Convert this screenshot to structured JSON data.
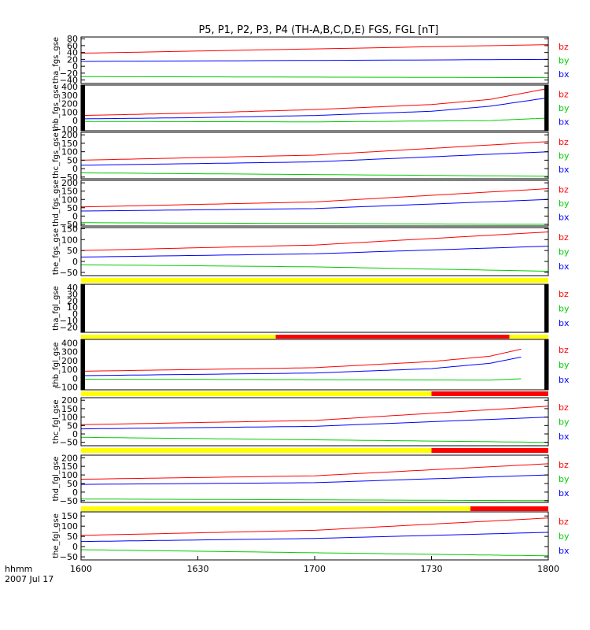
{
  "chart_data": {
    "type": "line",
    "title": "P5, P1, P2, P3, P4 (TH-A,B,C,D,E) FGS, FGL [nT]",
    "x_axis": {
      "range_hhmm": [
        "1600",
        "1800"
      ],
      "tick_labels": [
        "1600",
        "1630",
        "1700",
        "1730",
        "1800"
      ],
      "label_line1": "hhmm",
      "label_line2": "2007 Jul 17"
    },
    "series_colors": {
      "bz": "#ff0000",
      "by": "#00cc00",
      "bx": "#0000ff"
    },
    "legend_labels": [
      "bz",
      "by",
      "bx"
    ],
    "panels": [
      {
        "ylabel": "tha_fgs_gse",
        "ylim": [
          -50,
          85
        ],
        "yticks": [
          "80",
          "60",
          "40",
          "20",
          "0",
          "−20",
          "−40"
        ],
        "tick_values": [
          80,
          60,
          40,
          20,
          0,
          -20,
          -40
        ],
        "end_markers": false,
        "series": [
          {
            "name": "bz",
            "x_min": [
              0,
              120
            ],
            "values": [
              38,
              63
            ]
          },
          {
            "name": "by",
            "x_min": [
              0,
              120
            ],
            "values": [
              -30,
              -33
            ]
          },
          {
            "name": "bx",
            "x_min": [
              0,
              120
            ],
            "values": [
              14,
              20
            ]
          }
        ]
      },
      {
        "ylabel": "thb_fgs_gse",
        "ylim": [
          -120,
          420
        ],
        "yticks": [
          "400",
          "300",
          "200",
          "100",
          "0",
          "−100"
        ],
        "tick_values": [
          400,
          300,
          200,
          100,
          0,
          -100
        ],
        "end_markers": true,
        "series": [
          {
            "name": "bz",
            "x_min": [
              0,
              30,
              60,
              90,
              105,
              120
            ],
            "values": [
              60,
              90,
              130,
              190,
              250,
              380
            ]
          },
          {
            "name": "by",
            "x_min": [
              0,
              60,
              105,
              120
            ],
            "values": [
              -10,
              -15,
              0,
              30
            ]
          },
          {
            "name": "bx",
            "x_min": [
              0,
              30,
              60,
              90,
              105,
              120
            ],
            "values": [
              20,
              35,
              60,
              110,
              170,
              270
            ]
          }
        ]
      },
      {
        "ylabel": "thc_fgs_gse",
        "ylim": [
          -60,
          215
        ],
        "yticks": [
          "200",
          "150",
          "100",
          "50",
          "0",
          "−50"
        ],
        "tick_values": [
          200,
          150,
          100,
          50,
          0,
          -50
        ],
        "end_markers": false,
        "series": [
          {
            "name": "bz",
            "x_min": [
              0,
              60,
              120
            ],
            "values": [
              50,
              80,
              160
            ]
          },
          {
            "name": "by",
            "x_min": [
              0,
              60,
              120
            ],
            "values": [
              -25,
              -35,
              -45
            ]
          },
          {
            "name": "bx",
            "x_min": [
              0,
              60,
              120
            ],
            "values": [
              20,
              40,
              100
            ]
          }
        ]
      },
      {
        "ylabel": "thd_fgs_gse",
        "ylim": [
          -60,
          215
        ],
        "yticks": [
          "200",
          "150",
          "100",
          "50",
          "0",
          "−50"
        ],
        "tick_values": [
          200,
          150,
          100,
          50,
          0,
          -50
        ],
        "end_markers": false,
        "series": [
          {
            "name": "bz",
            "x_min": [
              0,
              60,
              120
            ],
            "values": [
              55,
              85,
              165
            ]
          },
          {
            "name": "by",
            "x_min": [
              0,
              60,
              120
            ],
            "values": [
              -40,
              -45,
              -50
            ]
          },
          {
            "name": "bx",
            "x_min": [
              0,
              60,
              120
            ],
            "values": [
              30,
              45,
              100
            ]
          }
        ]
      },
      {
        "ylabel": "the_fgs_gse",
        "ylim": [
          -65,
          155
        ],
        "yticks": [
          "150",
          "100",
          "50",
          "0",
          "−50"
        ],
        "tick_values": [
          150,
          100,
          50,
          0,
          -50
        ],
        "end_markers": false,
        "series": [
          {
            "name": "bz",
            "x_min": [
              0,
              60,
              120
            ],
            "values": [
              50,
              75,
              135
            ]
          },
          {
            "name": "by",
            "x_min": [
              0,
              60,
              120
            ],
            "values": [
              -15,
              -25,
              -45
            ]
          },
          {
            "name": "bx",
            "x_min": [
              0,
              60,
              120
            ],
            "values": [
              20,
              35,
              70
            ]
          }
        ]
      },
      {
        "ylabel": "tha_fgl_gse",
        "ylim": [
          -28,
          45
        ],
        "yticks": [
          "40",
          "30",
          "20",
          "10",
          "0",
          "−10",
          "−20"
        ],
        "tick_values": [
          40,
          30,
          20,
          10,
          0,
          -10,
          -20
        ],
        "end_markers": true,
        "series": []
      },
      {
        "ylabel": "thb_fgl_gse",
        "ylim": [
          -130,
          440
        ],
        "yticks": [
          "400",
          "300",
          "200",
          "100",
          "0",
          "−100"
        ],
        "tick_values": [
          400,
          300,
          200,
          100,
          0,
          -100
        ],
        "end_markers": true,
        "series": [
          {
            "name": "bz",
            "x_min": [
              0,
              60,
              90,
              105,
              113
            ],
            "values": [
              80,
              120,
              190,
              250,
              330
            ]
          },
          {
            "name": "by",
            "x_min": [
              0,
              60,
              105,
              113
            ],
            "values": [
              -10,
              -15,
              -20,
              -5
            ]
          },
          {
            "name": "bx",
            "x_min": [
              0,
              60,
              90,
              105,
              113
            ],
            "values": [
              30,
              60,
              110,
              170,
              240
            ]
          }
        ]
      },
      {
        "ylabel": "thc_fgl_gse",
        "ylim": [
          -70,
          215
        ],
        "yticks": [
          "200",
          "150",
          "100",
          "50",
          "0",
          "−50"
        ],
        "tick_values": [
          200,
          150,
          100,
          50,
          0,
          -50
        ],
        "end_markers": false,
        "series": [
          {
            "name": "bz",
            "x_min": [
              0,
              60,
              120
            ],
            "values": [
              55,
              80,
              165
            ]
          },
          {
            "name": "by",
            "x_min": [
              0,
              60,
              120
            ],
            "values": [
              -20,
              -35,
              -50
            ]
          },
          {
            "name": "bx",
            "x_min": [
              0,
              60,
              120
            ],
            "values": [
              30,
              45,
              100
            ]
          }
        ]
      },
      {
        "ylabel": "thd_fgl_gse",
        "ylim": [
          -60,
          215
        ],
        "yticks": [
          "200",
          "150",
          "100",
          "50",
          "0",
          "−50"
        ],
        "tick_values": [
          200,
          150,
          100,
          50,
          0,
          -50
        ],
        "end_markers": false,
        "series": [
          {
            "name": "bz",
            "x_min": [
              0,
              60,
              120
            ],
            "values": [
              75,
              95,
              165
            ]
          },
          {
            "name": "by",
            "x_min": [
              0,
              60,
              120
            ],
            "values": [
              -40,
              -45,
              -50
            ]
          },
          {
            "name": "bx",
            "x_min": [
              0,
              60,
              120
            ],
            "values": [
              45,
              55,
              100
            ]
          }
        ]
      },
      {
        "ylabel": "the_fgl_gse",
        "ylim": [
          -65,
          170
        ],
        "yticks": [
          "150",
          "100",
          "50",
          "0",
          "−50"
        ],
        "tick_values": [
          150,
          100,
          50,
          0,
          -50
        ],
        "end_markers": false,
        "series": [
          {
            "name": "bz",
            "x_min": [
              0,
              60,
              120
            ],
            "values": [
              55,
              80,
              140
            ]
          },
          {
            "name": "by",
            "x_min": [
              0,
              60,
              120
            ],
            "values": [
              -15,
              -30,
              -45
            ]
          },
          {
            "name": "bx",
            "x_min": [
              0,
              60,
              120
            ],
            "values": [
              25,
              40,
              70
            ]
          }
        ]
      }
    ],
    "mode_bars": [
      {
        "above_panel": 5,
        "segments": [
          {
            "color": "#ffff00",
            "x_min": [
              0,
              120
            ]
          }
        ]
      },
      {
        "above_panel": 6,
        "segments": [
          {
            "color": "#ffff00",
            "x_min": [
              0,
              50
            ]
          },
          {
            "color": "#ff0000",
            "x_min": [
              50,
              110
            ]
          },
          {
            "color": "#ffff00",
            "x_min": [
              110,
              120
            ]
          }
        ]
      },
      {
        "above_panel": 7,
        "segments": [
          {
            "color": "#ffff00",
            "x_min": [
              0,
              90
            ]
          },
          {
            "color": "#ff0000",
            "x_min": [
              90,
              120
            ]
          }
        ]
      },
      {
        "above_panel": 8,
        "segments": [
          {
            "color": "#ffff00",
            "x_min": [
              0,
              90
            ]
          },
          {
            "color": "#ff0000",
            "x_min": [
              90,
              120
            ]
          }
        ]
      },
      {
        "above_panel": 9,
        "segments": [
          {
            "color": "#ffff00",
            "x_min": [
              0,
              100
            ]
          },
          {
            "color": "#ff0000",
            "x_min": [
              100,
              120
            ]
          }
        ]
      }
    ]
  }
}
